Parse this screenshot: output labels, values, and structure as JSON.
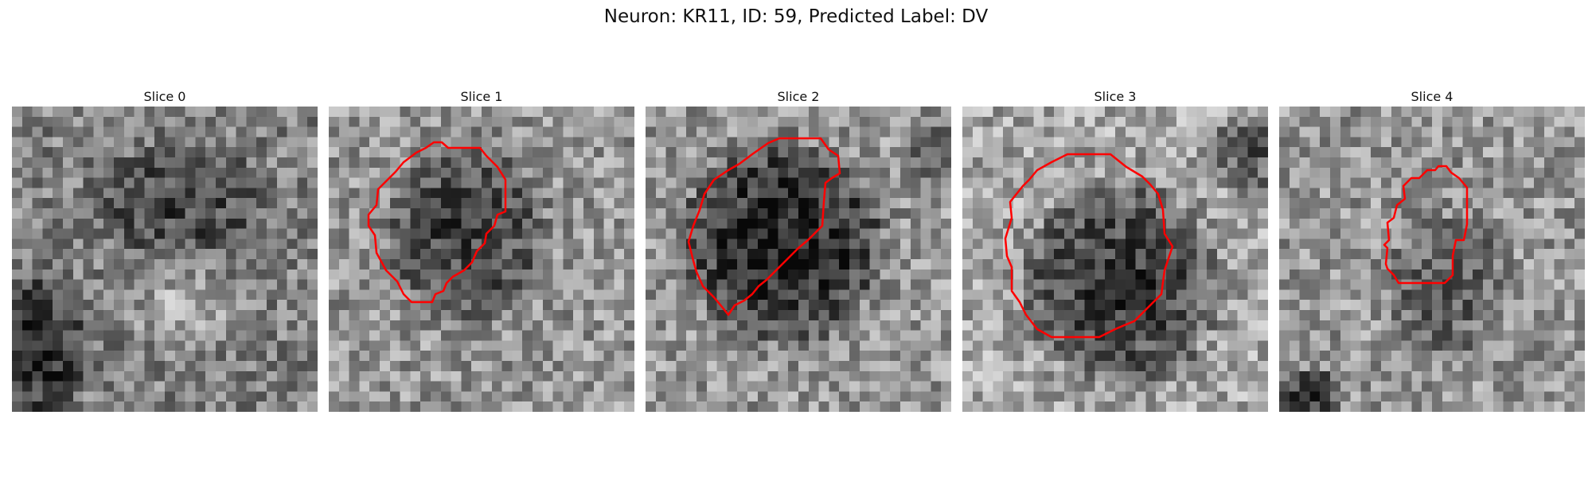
{
  "figure": {
    "title": "Neuron: KR11, ID: 59, Predicted Label: DV"
  },
  "colors": {
    "contour": "#ff0000",
    "background": "#ffffff"
  },
  "panels": [
    {
      "title": "Slice 0",
      "has_contour": false
    },
    {
      "title": "Slice 1",
      "has_contour": true
    },
    {
      "title": "Slice 2",
      "has_contour": true
    },
    {
      "title": "Slice 3",
      "has_contour": true
    },
    {
      "title": "Slice 4",
      "has_contour": true
    }
  ]
}
